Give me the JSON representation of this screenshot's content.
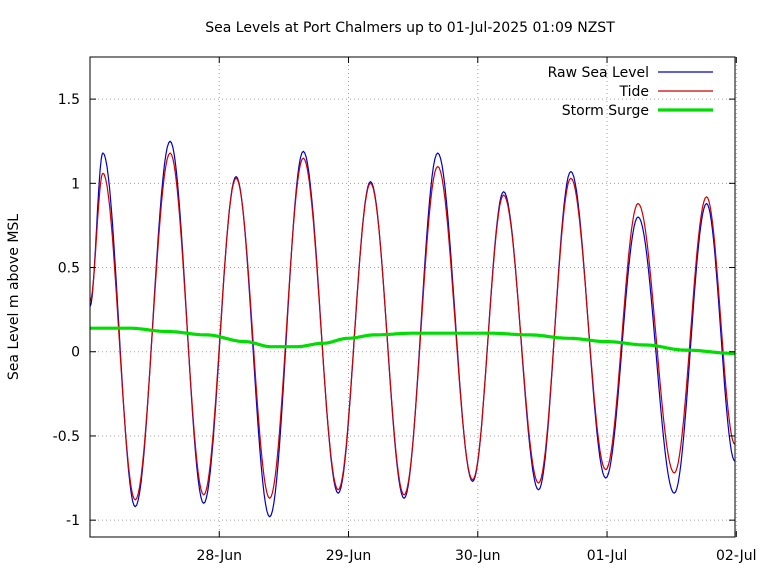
{
  "chart_data": {
    "type": "line",
    "title": "Sea Levels at Port Chalmers up to 01-Jul-2025 01:09 NZST",
    "xlabel": "",
    "ylabel": "Sea Level m above MSL",
    "x_unit": "days (tick labels are dates, year 2025)",
    "xlim": [
      27.0,
      31.99
    ],
    "ylim": [
      -1.1,
      1.75
    ],
    "x_ticks": [
      {
        "value": 28,
        "label": "28-Jun"
      },
      {
        "value": 29,
        "label": "29-Jun"
      },
      {
        "value": 30,
        "label": "30-Jun"
      },
      {
        "value": 31,
        "label": "01-Jul"
      },
      {
        "value": 32,
        "label": "02-Jul"
      }
    ],
    "y_ticks": [
      {
        "value": 1.5,
        "label": "1.5"
      },
      {
        "value": 1.0,
        "label": "1"
      },
      {
        "value": 0.5,
        "label": "0.5"
      },
      {
        "value": 0.0,
        "label": "0"
      },
      {
        "value": -0.5,
        "label": "-0.5"
      },
      {
        "value": -1.0,
        "label": "-1"
      }
    ],
    "grid": true,
    "legend": "top-right",
    "series": [
      {
        "name": "Raw Sea Level",
        "color": "#0000cc",
        "points": [
          [
            27.0,
            0.27
          ],
          [
            27.1,
            1.18
          ],
          [
            27.35,
            -0.92
          ],
          [
            27.62,
            1.25
          ],
          [
            27.88,
            -0.9
          ],
          [
            28.13,
            1.04
          ],
          [
            28.39,
            -0.98
          ],
          [
            28.65,
            1.19
          ],
          [
            28.92,
            -0.84
          ],
          [
            29.17,
            1.01
          ],
          [
            29.43,
            -0.87
          ],
          [
            29.69,
            1.18
          ],
          [
            29.96,
            -0.77
          ],
          [
            30.2,
            0.95
          ],
          [
            30.47,
            -0.82
          ],
          [
            30.72,
            1.07
          ],
          [
            30.99,
            -0.75
          ],
          [
            31.24,
            0.8
          ],
          [
            31.52,
            -0.84
          ],
          [
            31.77,
            0.88
          ],
          [
            31.99,
            -0.65
          ]
        ]
      },
      {
        "name": "Tide",
        "color": "#cc0000",
        "points": [
          [
            27.0,
            0.3
          ],
          [
            27.1,
            1.06
          ],
          [
            27.35,
            -0.88
          ],
          [
            27.62,
            1.18
          ],
          [
            27.88,
            -0.85
          ],
          [
            28.13,
            1.03
          ],
          [
            28.39,
            -0.87
          ],
          [
            28.65,
            1.15
          ],
          [
            28.92,
            -0.82
          ],
          [
            29.17,
            1.0
          ],
          [
            29.43,
            -0.85
          ],
          [
            29.69,
            1.1
          ],
          [
            29.96,
            -0.76
          ],
          [
            30.2,
            0.93
          ],
          [
            30.47,
            -0.78
          ],
          [
            30.72,
            1.03
          ],
          [
            30.99,
            -0.7
          ],
          [
            31.24,
            0.88
          ],
          [
            31.52,
            -0.72
          ],
          [
            31.77,
            0.92
          ],
          [
            31.99,
            -0.55
          ]
        ]
      },
      {
        "name": "Storm Surge",
        "color": "#00dd00",
        "points": [
          [
            27.0,
            0.14
          ],
          [
            27.3,
            0.14
          ],
          [
            27.6,
            0.12
          ],
          [
            27.9,
            0.1
          ],
          [
            28.2,
            0.06
          ],
          [
            28.4,
            0.03
          ],
          [
            28.6,
            0.03
          ],
          [
            28.8,
            0.05
          ],
          [
            29.0,
            0.08
          ],
          [
            29.2,
            0.1
          ],
          [
            29.5,
            0.11
          ],
          [
            29.8,
            0.11
          ],
          [
            30.1,
            0.11
          ],
          [
            30.4,
            0.1
          ],
          [
            30.7,
            0.08
          ],
          [
            31.0,
            0.06
          ],
          [
            31.3,
            0.04
          ],
          [
            31.6,
            0.01
          ],
          [
            31.99,
            -0.01
          ]
        ]
      }
    ]
  }
}
